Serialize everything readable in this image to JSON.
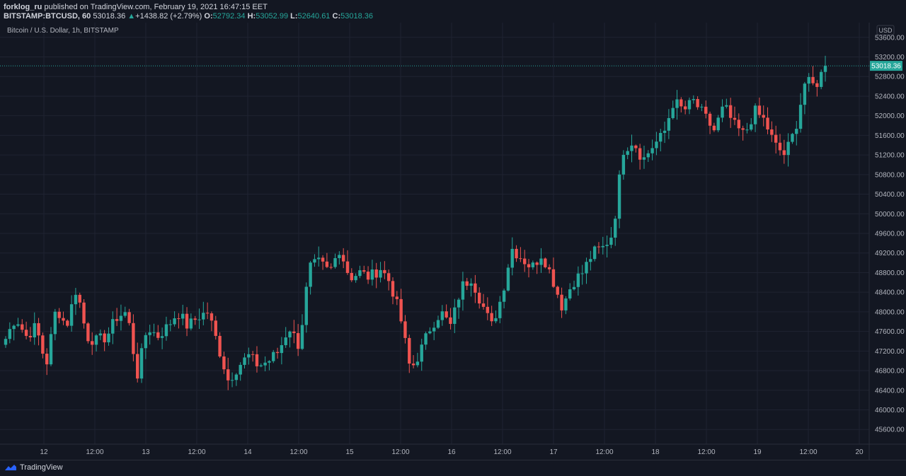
{
  "header": {
    "author": "forklog_ru",
    "published_text": "published on TradingView.com, February 19, 2021 16:47:15 EET",
    "symbol": "BITSTAMP:BTCUSD, 60",
    "last": "53018.36",
    "change_arrow": "▲",
    "change": "+1438.82 (+2.79%)",
    "open_label": "O:",
    "open": "52792.34",
    "high_label": "H:",
    "high": "53052.99",
    "low_label": "L:",
    "low": "52640.61",
    "close_label": "C:",
    "close": "53018.36"
  },
  "legend_text": "Bitcoin / U.S. Dollar, 1h, BITSTAMP",
  "footer": {
    "brand": "TradingView",
    "logo_icon": "tradingview-logo-icon"
  },
  "colors": {
    "background": "#131722",
    "up": "#26a69a",
    "down": "#ef5350",
    "grid": "#1f2331",
    "text": "#b2b5be"
  },
  "chart_data": {
    "type": "candlestick",
    "title": "Bitcoin / U.S. Dollar, 1h, BITSTAMP",
    "currency": "USD",
    "ylim": [
      45300,
      53900
    ],
    "y_ticks": [
      "53600.00",
      "53200.00",
      "52800.00",
      "52400.00",
      "52000.00",
      "51600.00",
      "51200.00",
      "50800.00",
      "50400.00",
      "50000.00",
      "49600.00",
      "49200.00",
      "48800.00",
      "48400.00",
      "48000.00",
      "47600.00",
      "47200.00",
      "46800.00",
      "46400.00",
      "46000.00",
      "45600.00"
    ],
    "x_ticks": [
      "12",
      "12:00",
      "13",
      "12:00",
      "14",
      "12:00",
      "15",
      "12:00",
      "16",
      "12:00",
      "17",
      "12:00",
      "18",
      "12:00",
      "19",
      "12:00",
      "20"
    ],
    "last_price": "53018.36",
    "grid": true,
    "series_anchors_close": [
      47450,
      47900,
      47500,
      47700,
      46900,
      48100,
      47700,
      48500,
      47500,
      47400,
      47500,
      47900,
      48000,
      46700,
      47700,
      47500,
      47700,
      48000,
      47700,
      47900,
      48000,
      47300,
      46600,
      46900,
      47100,
      46900,
      47000,
      47200,
      47700,
      47300,
      48900,
      49000,
      48800,
      49300,
      48700,
      48800,
      48700,
      48900,
      48600,
      47900,
      46800,
      47200,
      47700,
      48000,
      47700,
      48500,
      48700,
      48200,
      47700,
      48300,
      49300,
      49100,
      48900,
      49200,
      48700,
      48100,
      48600,
      48800,
      49200,
      49300,
      49600,
      51300,
      51500,
      51100,
      51400,
      51600,
      52300,
      52100,
      52300,
      52000,
      51700,
      52200,
      51800,
      51600,
      52100,
      51900,
      51400,
      51200,
      51700,
      52700,
      52600,
      53018.36
    ]
  }
}
